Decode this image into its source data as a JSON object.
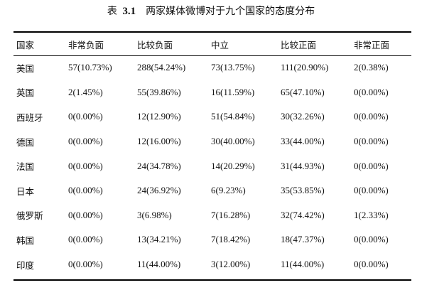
{
  "caption": {
    "prefix": "表",
    "number": "3.1",
    "title": "两家媒体微博对于九个国家的态度分布"
  },
  "table": {
    "headers": [
      "国家",
      "非常负面",
      "比较负面",
      "中立",
      "比较正面",
      "非常正面"
    ],
    "rows": [
      {
        "country": "美国",
        "cells": [
          "57(10.73%)",
          "288(54.24%)",
          "73(13.75%)",
          "111(20.90%)",
          "2(0.38%)"
        ]
      },
      {
        "country": "英国",
        "cells": [
          "2(1.45%)",
          "55(39.86%)",
          "16(11.59%)",
          "65(47.10%)",
          "0(0.00%)"
        ]
      },
      {
        "country": "西班牙",
        "cells": [
          "0(0.00%)",
          "12(12.90%)",
          "51(54.84%)",
          "30(32.26%)",
          "0(0.00%)"
        ]
      },
      {
        "country": "德国",
        "cells": [
          "0(0.00%)",
          "12(16.00%)",
          "30(40.00%)",
          "33(44.00%)",
          "0(0.00%)"
        ]
      },
      {
        "country": "法国",
        "cells": [
          "0(0.00%)",
          "24(34.78%)",
          "14(20.29%)",
          "31(44.93%)",
          "0(0.00%)"
        ]
      },
      {
        "country": "日本",
        "cells": [
          "0(0.00%)",
          "24(36.92%)",
          "6(9.23%)",
          "35(53.85%)",
          "0(0.00%)"
        ]
      },
      {
        "country": "俄罗斯",
        "cells": [
          "0(0.00%)",
          "3(6.98%)",
          "7(16.28%)",
          "32(74.42%)",
          "1(2.33%)"
        ]
      },
      {
        "country": "韩国",
        "cells": [
          "0(0.00%)",
          "13(34.21%)",
          "7(18.42%)",
          "18(47.37%)",
          "0(0.00%)"
        ]
      },
      {
        "country": "印度",
        "cells": [
          "0(0.00%)",
          "11(44.00%)",
          "3(12.00%)",
          "11(44.00%)",
          "0(0.00%)"
        ]
      }
    ]
  }
}
